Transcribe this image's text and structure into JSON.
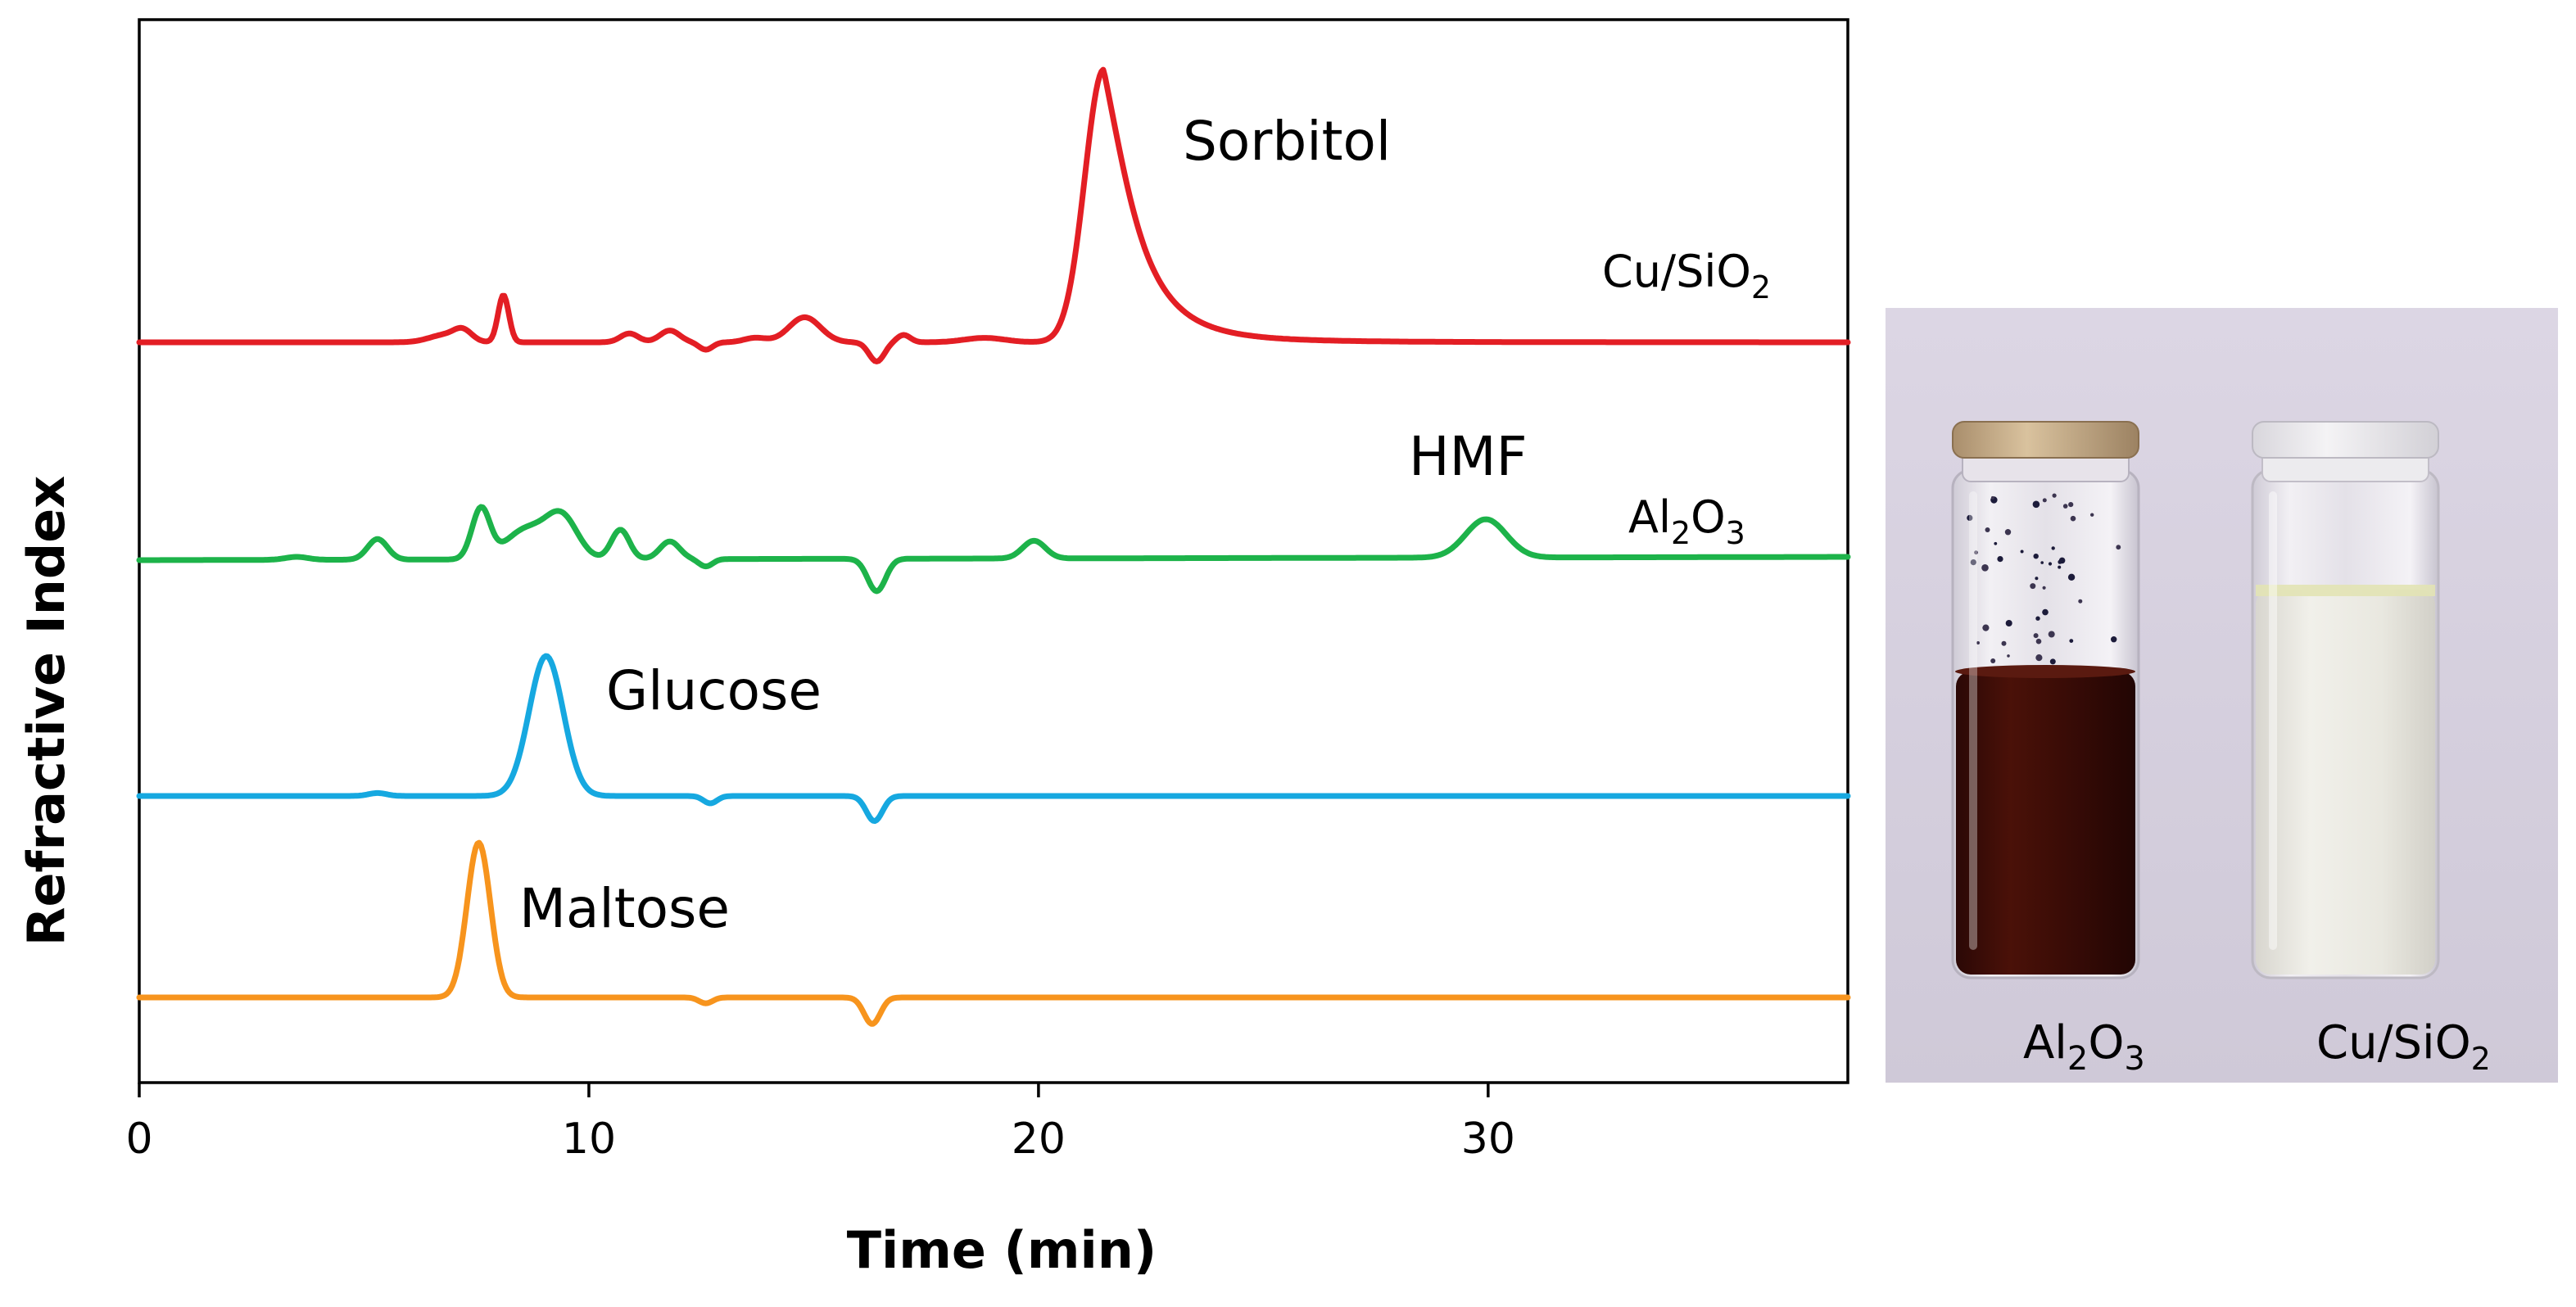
{
  "chart_data": {
    "type": "line",
    "title": "",
    "xlabel": "Time (min)",
    "ylabel": "Refractive Index",
    "xlim": [
      0,
      38
    ],
    "xticks": [
      "0",
      "10",
      "20",
      "30"
    ],
    "grid": false,
    "series": [
      {
        "name": "Cu/SiO2",
        "label_main": "Cu/SiO",
        "label_sub": "2",
        "color": "#e31e24",
        "peaks": [
          {
            "t": 6.8,
            "h": 0.05,
            "w": 0.35
          },
          {
            "t": 7.2,
            "h": 0.07,
            "w": 0.2
          },
          {
            "t": 8.1,
            "h": 0.32,
            "w": 0.12
          },
          {
            "t": 10.9,
            "h": 0.06,
            "w": 0.2
          },
          {
            "t": 11.8,
            "h": 0.08,
            "w": 0.22
          },
          {
            "t": 12.6,
            "h": -0.05,
            "w": 0.15
          },
          {
            "t": 13.7,
            "h": 0.03,
            "w": 0.25
          },
          {
            "t": 14.8,
            "h": 0.17,
            "w": 0.35
          },
          {
            "t": 16.4,
            "h": -0.13,
            "w": 0.17
          },
          {
            "t": 17.0,
            "h": 0.05,
            "w": 0.15
          },
          {
            "t": 18.8,
            "h": 0.03,
            "w": 0.45
          }
        ],
        "main_peak": {
          "t": 21.45,
          "h": 1.85,
          "rise": 0.42,
          "tau": 1.2
        }
      },
      {
        "name": "Al2O3",
        "label_main": "Al",
        "label_sub1": "2",
        "label_mid": "O",
        "label_sub2": "3",
        "color": "#1db34a",
        "peaks": [
          {
            "t": 3.5,
            "h": 0.02,
            "w": 0.25
          },
          {
            "t": 5.3,
            "h": 0.14,
            "w": 0.22
          },
          {
            "t": 7.6,
            "h": 0.34,
            "w": 0.2
          },
          {
            "t": 8.6,
            "h": 0.2,
            "w": 0.45
          },
          {
            "t": 9.4,
            "h": 0.28,
            "w": 0.35
          },
          {
            "t": 10.7,
            "h": 0.2,
            "w": 0.2
          },
          {
            "t": 11.8,
            "h": 0.12,
            "w": 0.22
          },
          {
            "t": 12.6,
            "h": -0.05,
            "w": 0.15
          },
          {
            "t": 16.4,
            "h": -0.22,
            "w": 0.2
          },
          {
            "t": 19.9,
            "h": 0.12,
            "w": 0.25
          },
          {
            "t": 29.95,
            "h": 0.26,
            "w": 0.45
          }
        ]
      },
      {
        "name": "Glucose",
        "color": "#16a8e0",
        "peaks": [
          {
            "t": 9.05,
            "h": 0.95,
            "w": 0.38
          },
          {
            "t": 5.3,
            "h": 0.02,
            "w": 0.2
          },
          {
            "t": 12.7,
            "h": -0.05,
            "w": 0.15
          },
          {
            "t": 16.35,
            "h": -0.17,
            "w": 0.18
          }
        ]
      },
      {
        "name": "Maltose",
        "color": "#f7941d",
        "peaks": [
          {
            "t": 7.55,
            "h": 1.05,
            "w": 0.26
          },
          {
            "t": 12.6,
            "h": -0.04,
            "w": 0.15
          },
          {
            "t": 16.3,
            "h": -0.18,
            "w": 0.18
          }
        ]
      }
    ],
    "annotations": [
      "Sorbitol",
      "HMF",
      "Glucose",
      "Maltose"
    ]
  },
  "photo": {
    "vials": [
      {
        "main": "Al",
        "sub1": "2",
        "mid": "O",
        "sub2": "3"
      },
      {
        "main": "Cu/SiO",
        "sub1": "2"
      }
    ]
  },
  "colors": {
    "red": "#e31e24",
    "green": "#1db34a",
    "blue": "#16a8e0",
    "orange": "#f7941d"
  }
}
